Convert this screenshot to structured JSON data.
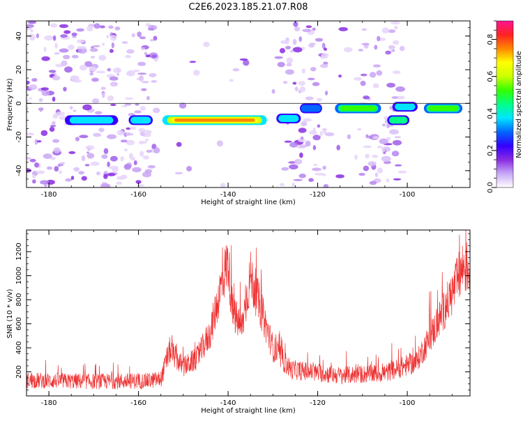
{
  "figure": {
    "title": "C2E6.2023.185.21.07.R08"
  },
  "colors": {
    "line": "#ee3333",
    "axis": "#000000",
    "zero_line": "#333333",
    "colormap": [
      "#ffffff",
      "#c8a8f8",
      "#8a2be2",
      "#3300ff",
      "#0066ff",
      "#00e5ff",
      "#00ff88",
      "#33ff00",
      "#ccff00",
      "#ffff00",
      "#ff8800",
      "#ff2222",
      "#ff1493"
    ]
  },
  "chart_data": [
    {
      "type": "heatmap",
      "title": "",
      "xlabel": "Height of straight line (km)",
      "ylabel": "Frequency (Hz)",
      "xlim": [
        -185,
        -86
      ],
      "ylim": [
        -50,
        49
      ],
      "x_ticks": [
        -180,
        -160,
        -140,
        -120,
        -100
      ],
      "y_ticks": [
        -40,
        -20,
        0,
        20,
        40
      ],
      "colorbar": {
        "label": "Normalized spectral amplitude",
        "range": [
          0,
          0.9
        ],
        "ticks": [
          0.0,
          0.2,
          0.4,
          0.6,
          0.8
        ]
      },
      "features": [
        {
          "x_range": [
            -178,
            -163
          ],
          "freq": -10,
          "peak": 0.42
        },
        {
          "x_range": [
            -163,
            -156
          ],
          "freq": -10,
          "peak": 0.38
        },
        {
          "x_range": [
            -156,
            -130
          ],
          "freq": -10,
          "peak": 0.85
        },
        {
          "x_range": [
            -130,
            -123
          ],
          "freq": -9,
          "peak": 0.4
        },
        {
          "x_range": [
            -125,
            -118
          ],
          "freq": -3,
          "peak": 0.3
        },
        {
          "x_range": [
            -117,
            -105
          ],
          "freq": -3,
          "peak": 0.62
        },
        {
          "x_range": [
            -105,
            -99
          ],
          "freq": -10,
          "peak": 0.5
        },
        {
          "x_range": [
            -104,
            -97
          ],
          "freq": -2,
          "peak": 0.45
        },
        {
          "x_range": [
            -97,
            -87
          ],
          "freq": -3,
          "peak": 0.62
        }
      ]
    },
    {
      "type": "line",
      "title": "",
      "xlabel": "Height of straight line (km)",
      "ylabel": "SNR (10 * v/v)",
      "xlim": [
        -185,
        -86
      ],
      "ylim": [
        0,
        1380
      ],
      "x_ticks": [
        -180,
        -160,
        -140,
        -120,
        -100
      ],
      "y_ticks": [
        200,
        400,
        600,
        800,
        1000,
        1200
      ],
      "envelope_points": [
        [
          -185,
          130
        ],
        [
          -170,
          120
        ],
        [
          -158,
          125
        ],
        [
          -155,
          140
        ],
        [
          -153,
          380
        ],
        [
          -150,
          240
        ],
        [
          -147,
          310
        ],
        [
          -144,
          520
        ],
        [
          -141,
          1000
        ],
        [
          -140,
          1120
        ],
        [
          -139,
          700
        ],
        [
          -137,
          560
        ],
        [
          -135,
          1000
        ],
        [
          -133,
          760
        ],
        [
          -130,
          400
        ],
        [
          -126,
          220
        ],
        [
          -115,
          170
        ],
        [
          -105,
          190
        ],
        [
          -98,
          280
        ],
        [
          -94,
          550
        ],
        [
          -90,
          850
        ],
        [
          -87.5,
          1080
        ],
        [
          -86,
          1050
        ]
      ]
    }
  ]
}
